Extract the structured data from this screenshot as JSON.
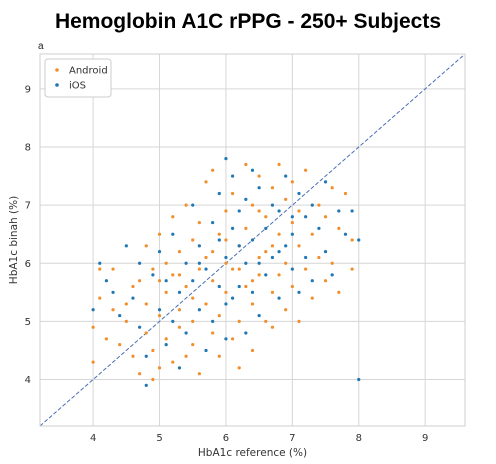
{
  "title": "Hemoglobin A1C rPPG - 250+ Subjects",
  "panel_label": "a",
  "colors": {
    "android": "#f28e2b",
    "ios": "#1f77b4",
    "identity": "#4a6fb5",
    "grid": "#d6d6d6",
    "frame": "#cfcfcf"
  },
  "chart_data": {
    "type": "scatter",
    "xlabel": "HbA1c reference (%)",
    "ylabel": "HbA1c binah (%)",
    "xlim": [
      3.2,
      9.6
    ],
    "ylim": [
      3.2,
      9.6
    ],
    "xticks": [
      "4",
      "5",
      "6",
      "7",
      "8",
      "9"
    ],
    "yticks": [
      "4",
      "5",
      "6",
      "7",
      "8",
      "9"
    ],
    "grid": true,
    "legend_position": "top-left",
    "identity_line": true,
    "series": [
      {
        "name": "Android",
        "color": "#f28e2b",
        "points": [
          [
            4.0,
            4.3
          ],
          [
            4.0,
            4.9
          ],
          [
            4.1,
            5.9
          ],
          [
            4.1,
            5.4
          ],
          [
            4.2,
            4.7
          ],
          [
            4.3,
            5.2
          ],
          [
            4.3,
            5.9
          ],
          [
            4.4,
            4.6
          ],
          [
            4.5,
            5.0
          ],
          [
            4.6,
            5.6
          ],
          [
            4.6,
            4.4
          ],
          [
            4.7,
            5.7
          ],
          [
            4.7,
            4.1
          ],
          [
            4.8,
            4.8
          ],
          [
            4.8,
            6.3
          ],
          [
            4.8,
            5.3
          ],
          [
            4.9,
            4.0
          ],
          [
            4.9,
            4.5
          ],
          [
            4.9,
            5.9
          ],
          [
            5.0,
            4.2
          ],
          [
            5.0,
            5.1
          ],
          [
            5.0,
            6.5
          ],
          [
            5.1,
            4.7
          ],
          [
            5.1,
            5.5
          ],
          [
            5.1,
            6.0
          ],
          [
            5.2,
            5.8
          ],
          [
            5.2,
            4.3
          ],
          [
            5.2,
            6.8
          ],
          [
            5.3,
            5.2
          ],
          [
            5.3,
            4.9
          ],
          [
            5.3,
            6.2
          ],
          [
            5.4,
            4.4
          ],
          [
            5.4,
            5.6
          ],
          [
            5.4,
            7.0
          ],
          [
            5.5,
            6.4
          ],
          [
            5.5,
            5.0
          ],
          [
            5.5,
            4.6
          ],
          [
            5.6,
            5.9
          ],
          [
            5.6,
            6.7
          ],
          [
            5.6,
            4.1
          ],
          [
            5.7,
            5.3
          ],
          [
            5.7,
            7.4
          ],
          [
            5.7,
            6.1
          ],
          [
            5.8,
            4.8
          ],
          [
            5.8,
            5.7
          ],
          [
            5.8,
            7.6
          ],
          [
            5.9,
            6.5
          ],
          [
            5.9,
            5.1
          ],
          [
            5.9,
            4.4
          ],
          [
            6.0,
            6.0
          ],
          [
            6.0,
            6.9
          ],
          [
            6.0,
            5.5
          ],
          [
            6.1,
            4.7
          ],
          [
            6.1,
            7.2
          ],
          [
            6.1,
            5.9
          ],
          [
            6.2,
            6.3
          ],
          [
            6.2,
            5.0
          ],
          [
            6.2,
            4.2
          ],
          [
            6.3,
            7.7
          ],
          [
            6.3,
            5.6
          ],
          [
            6.3,
            6.6
          ],
          [
            6.4,
            5.3
          ],
          [
            6.4,
            7.0
          ],
          [
            6.4,
            4.5
          ],
          [
            6.5,
            6.1
          ],
          [
            6.5,
            5.8
          ],
          [
            6.5,
            7.5
          ],
          [
            6.6,
            5.0
          ],
          [
            6.6,
            6.8
          ],
          [
            6.6,
            6.2
          ],
          [
            6.7,
            7.3
          ],
          [
            6.7,
            5.5
          ],
          [
            6.7,
            4.9
          ],
          [
            6.8,
            6.5
          ],
          [
            6.8,
            7.7
          ],
          [
            6.8,
            5.8
          ],
          [
            6.9,
            6.0
          ],
          [
            6.9,
            7.1
          ],
          [
            6.9,
            5.2
          ],
          [
            7.0,
            6.7
          ],
          [
            7.0,
            5.6
          ],
          [
            7.0,
            7.4
          ],
          [
            7.1,
            6.3
          ],
          [
            7.1,
            5.0
          ],
          [
            7.1,
            6.9
          ],
          [
            7.2,
            5.9
          ],
          [
            7.2,
            7.6
          ],
          [
            7.3,
            6.5
          ],
          [
            7.3,
            5.4
          ],
          [
            7.4,
            7.0
          ],
          [
            7.4,
            6.1
          ],
          [
            7.5,
            5.7
          ],
          [
            7.5,
            6.8
          ],
          [
            7.6,
            7.3
          ],
          [
            7.6,
            6.0
          ],
          [
            7.7,
            5.5
          ],
          [
            7.7,
            6.6
          ],
          [
            7.8,
            7.2
          ],
          [
            7.9,
            6.4
          ],
          [
            7.9,
            5.9
          ],
          [
            4.5,
            5.3
          ],
          [
            5.0,
            5.7
          ],
          [
            5.5,
            5.4
          ],
          [
            6.0,
            6.4
          ],
          [
            6.5,
            6.9
          ],
          [
            5.8,
            6.2
          ],
          [
            6.2,
            5.9
          ],
          [
            6.7,
            6.3
          ],
          [
            5.3,
            5.8
          ],
          [
            6.4,
            5.7
          ]
        ]
      },
      {
        "name": "iOS",
        "color": "#1f77b4",
        "points": [
          [
            4.0,
            5.2
          ],
          [
            4.1,
            6.0
          ],
          [
            4.2,
            5.7
          ],
          [
            4.3,
            5.5
          ],
          [
            4.4,
            5.1
          ],
          [
            4.5,
            6.3
          ],
          [
            4.6,
            5.4
          ],
          [
            4.7,
            4.9
          ],
          [
            4.7,
            6.0
          ],
          [
            4.8,
            3.9
          ],
          [
            4.8,
            4.4
          ],
          [
            4.9,
            5.8
          ],
          [
            5.0,
            5.2
          ],
          [
            5.0,
            6.2
          ],
          [
            5.1,
            4.6
          ],
          [
            5.1,
            5.7
          ],
          [
            5.2,
            5.0
          ],
          [
            5.2,
            6.5
          ],
          [
            5.3,
            4.2
          ],
          [
            5.3,
            5.5
          ],
          [
            5.4,
            6.0
          ],
          [
            5.4,
            4.8
          ],
          [
            5.5,
            5.7
          ],
          [
            5.5,
            7.0
          ],
          [
            5.6,
            5.2
          ],
          [
            5.6,
            6.3
          ],
          [
            5.7,
            4.5
          ],
          [
            5.7,
            5.9
          ],
          [
            5.8,
            6.7
          ],
          [
            5.8,
            5.0
          ],
          [
            5.9,
            5.6
          ],
          [
            5.9,
            7.2
          ],
          [
            6.0,
            6.1
          ],
          [
            6.0,
            4.7
          ],
          [
            6.0,
            5.3
          ],
          [
            6.1,
            6.6
          ],
          [
            6.1,
            7.5
          ],
          [
            6.2,
            5.6
          ],
          [
            6.2,
            6.9
          ],
          [
            6.3,
            4.8
          ],
          [
            6.3,
            6.0
          ],
          [
            6.3,
            7.1
          ],
          [
            6.4,
            5.5
          ],
          [
            6.4,
            6.4
          ],
          [
            6.5,
            7.3
          ],
          [
            6.5,
            5.1
          ],
          [
            6.6,
            6.6
          ],
          [
            6.6,
            5.8
          ],
          [
            6.7,
            7.0
          ],
          [
            6.7,
            6.1
          ],
          [
            6.8,
            5.4
          ],
          [
            6.8,
            6.9
          ],
          [
            6.9,
            6.3
          ],
          [
            6.9,
            7.5
          ],
          [
            7.0,
            5.9
          ],
          [
            7.0,
            6.5
          ],
          [
            7.1,
            7.2
          ],
          [
            7.1,
            5.5
          ],
          [
            7.2,
            6.8
          ],
          [
            7.2,
            6.1
          ],
          [
            7.3,
            7.0
          ],
          [
            7.3,
            5.7
          ],
          [
            7.4,
            6.6
          ],
          [
            7.5,
            6.2
          ],
          [
            7.5,
            7.4
          ],
          [
            7.6,
            5.8
          ],
          [
            7.7,
            6.9
          ],
          [
            7.8,
            6.5
          ],
          [
            7.9,
            6.9
          ],
          [
            8.0,
            6.4
          ],
          [
            8.0,
            4.0
          ],
          [
            6.0,
            7.8
          ],
          [
            6.4,
            7.6
          ],
          [
            5.9,
            6.4
          ],
          [
            6.5,
            6.0
          ],
          [
            6.1,
            5.4
          ],
          [
            5.6,
            6.0
          ],
          [
            6.8,
            6.2
          ],
          [
            6.2,
            6.3
          ],
          [
            7.0,
            6.8
          ]
        ]
      }
    ]
  }
}
